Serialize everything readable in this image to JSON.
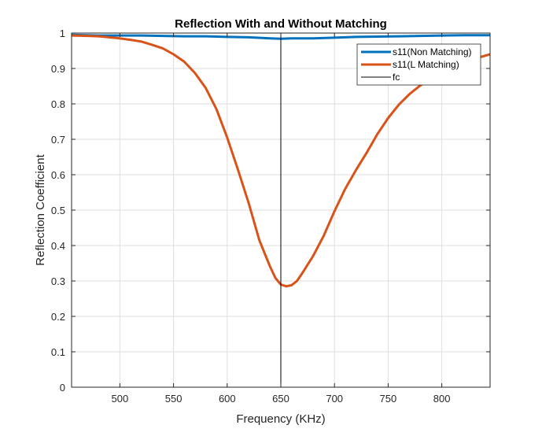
{
  "chart_data": {
    "type": "line",
    "title": "Reflection With and Without Matching",
    "xlabel": "Frequency (KHz)",
    "ylabel": "Reflection Coefficient",
    "xlim": [
      455,
      845
    ],
    "ylim": [
      0,
      1
    ],
    "x_ticks": [
      500,
      550,
      600,
      650,
      700,
      750,
      800
    ],
    "y_ticks": [
      0,
      0.1,
      0.2,
      0.3,
      0.4,
      0.5,
      0.6,
      0.7,
      0.8,
      0.9,
      1
    ],
    "grid": true,
    "legend_position": "top-right",
    "series": [
      {
        "name": "s11(Non Matching)",
        "color": "#0072BD",
        "x": [
          455,
          480,
          500,
          520,
          540,
          560,
          580,
          600,
          620,
          640,
          650,
          660,
          680,
          700,
          720,
          740,
          760,
          780,
          800,
          820,
          845
        ],
        "y": [
          0.995,
          0.993,
          0.993,
          0.993,
          0.992,
          0.991,
          0.991,
          0.989,
          0.988,
          0.985,
          0.984,
          0.985,
          0.985,
          0.987,
          0.989,
          0.99,
          0.991,
          0.992,
          0.993,
          0.994,
          0.994
        ]
      },
      {
        "name": "s11(L Matching)",
        "color": "#D95319",
        "x": [
          455,
          470,
          480,
          490,
          500,
          510,
          520,
          530,
          540,
          550,
          560,
          570,
          580,
          590,
          600,
          610,
          620,
          630,
          640,
          645,
          650,
          655,
          660,
          665,
          670,
          680,
          690,
          700,
          710,
          720,
          730,
          740,
          750,
          760,
          770,
          780,
          790,
          800,
          810,
          820,
          830,
          845
        ],
        "y": [
          0.993,
          0.992,
          0.991,
          0.988,
          0.985,
          0.981,
          0.976,
          0.967,
          0.957,
          0.94,
          0.919,
          0.887,
          0.845,
          0.785,
          0.705,
          0.615,
          0.52,
          0.415,
          0.34,
          0.308,
          0.29,
          0.285,
          0.288,
          0.3,
          0.322,
          0.37,
          0.428,
          0.497,
          0.56,
          0.613,
          0.662,
          0.715,
          0.76,
          0.798,
          0.828,
          0.852,
          0.872,
          0.89,
          0.905,
          0.917,
          0.927,
          0.94
        ]
      }
    ],
    "reference_lines": [
      {
        "name": "fc",
        "axis": "x",
        "value": 650,
        "color": "#000000"
      }
    ]
  }
}
